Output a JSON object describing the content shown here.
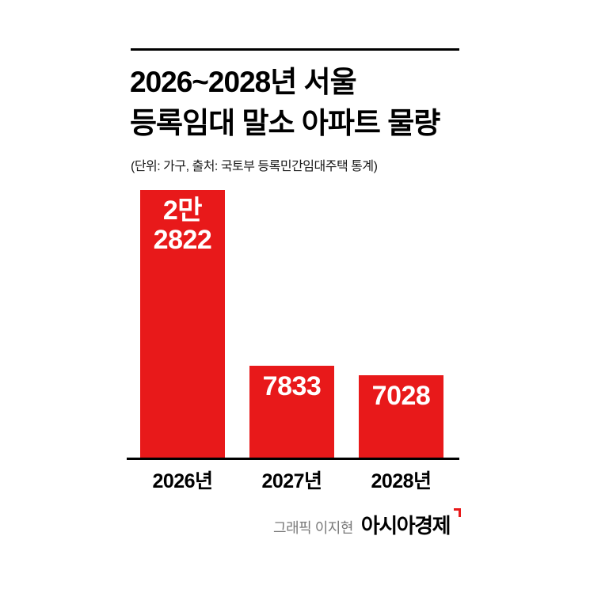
{
  "header": {
    "title_line1": "2026~2028년 서울",
    "title_line2": "등록임대 말소 아파트 물량",
    "subtitle": "(단위: 가구, 출처: 국토부 등록민간임대주택 통계)"
  },
  "chart_data": {
    "type": "bar",
    "title": "2026~2028년 서울 등록임대 말소 아파트 물량",
    "subtitle": "(단위: 가구, 출처: 국토부 등록민간임대주택 통계)",
    "unit": "가구",
    "source": "국토부 등록민간임대주택 통계",
    "categories": [
      "2026년",
      "2027년",
      "2028년"
    ],
    "values": [
      22822,
      7833,
      7028
    ],
    "bar_labels": [
      [
        "2만",
        "2822"
      ],
      [
        "7833"
      ],
      [
        "7028"
      ]
    ],
    "bar_color": "#e8191a",
    "value_label_color": "#ffffff",
    "ylim": [
      0,
      22822
    ],
    "grid": false,
    "legend": "none"
  },
  "footer": {
    "credit": "그래픽 이지현",
    "brand": "아시아경제"
  }
}
